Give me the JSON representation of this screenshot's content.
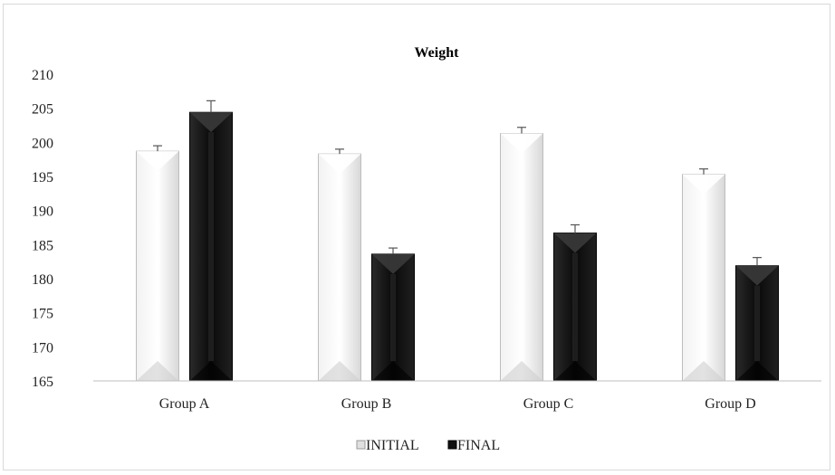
{
  "chart_data": {
    "type": "bar",
    "title": "Weight",
    "xlabel": "",
    "ylabel": "",
    "categories": [
      "Group A",
      "Group B",
      "Group C",
      "Group D"
    ],
    "ylim": [
      165,
      210
    ],
    "yticks": [
      165,
      170,
      175,
      180,
      185,
      190,
      195,
      200,
      205,
      210
    ],
    "grid": false,
    "legend_position": "bottom",
    "series": [
      {
        "name": "INITIAL",
        "color": "#e4e4e4",
        "values": [
          198.7,
          198.3,
          201.3,
          195.3
        ],
        "error": [
          0.8,
          0.7,
          0.9,
          0.8
        ]
      },
      {
        "name": "FINAL",
        "color": "#1a1a1a",
        "values": [
          204.4,
          183.6,
          186.7,
          181.9
        ],
        "error": [
          1.7,
          0.9,
          1.2,
          1.2
        ]
      }
    ]
  }
}
